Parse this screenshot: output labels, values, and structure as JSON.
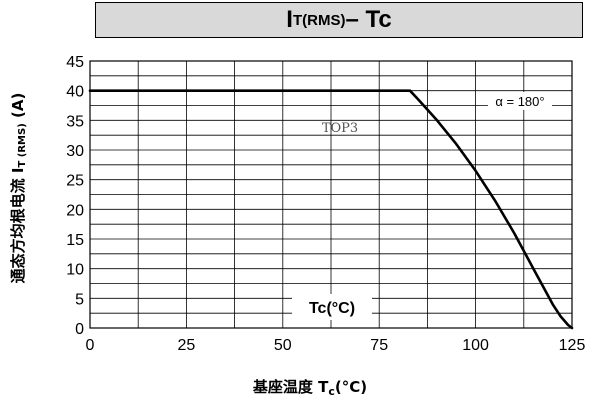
{
  "title": {
    "main": "I",
    "sub": "T(RMS)",
    "rest": " – Tc"
  },
  "ylabel": {
    "main": "通态方均根电流 I",
    "sub": "T (RMS)",
    "rest": " (A)"
  },
  "xlabel": {
    "main": "基座温度 T",
    "sub": "c",
    "rest": "(°C)"
  },
  "annotations": {
    "top3": "TOP3",
    "alpha": "α = 180°",
    "tc_box": "Tc(°C)"
  },
  "chart_data": {
    "type": "line",
    "title": "IT(RMS) – Tc",
    "xlabel": "基座温度 Tc(°C)",
    "ylabel": "通态方均根电流 IT (RMS) (A)",
    "xlim": [
      0,
      125
    ],
    "ylim": [
      0,
      45
    ],
    "x_ticks": [
      0,
      25,
      50,
      75,
      100,
      125
    ],
    "y_ticks": [
      0,
      5,
      10,
      15,
      20,
      25,
      30,
      35,
      40,
      45
    ],
    "grid": true,
    "series": [
      {
        "x": [
          0,
          10,
          20,
          30,
          40,
          50,
          60,
          70,
          80,
          83,
          85,
          90,
          95,
          100,
          105,
          110,
          115,
          120,
          122,
          124,
          125
        ],
        "y": [
          40,
          40,
          40,
          40,
          40,
          40,
          40,
          40,
          40,
          40,
          38.6,
          35,
          31,
          26.5,
          21.5,
          16,
          10,
          4,
          2,
          0.5,
          0
        ]
      }
    ]
  }
}
